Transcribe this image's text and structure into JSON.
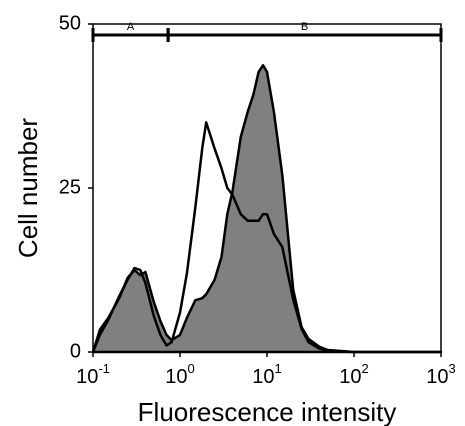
{
  "chart_data": {
    "type": "histogram-overlay",
    "xlabel": "Fluorescence intensity",
    "ylabel": "Cell number",
    "xscale": "log",
    "xlim": [
      0.1,
      1000
    ],
    "ylim": [
      0,
      50
    ],
    "xticks": [
      {
        "value": 0.1,
        "label": "10",
        "exponent": "-1"
      },
      {
        "value": 1,
        "label": "10",
        "exponent": "0"
      },
      {
        "value": 10,
        "label": "10",
        "exponent": "1"
      },
      {
        "value": 100,
        "label": "10",
        "exponent": "2"
      },
      {
        "value": 1000,
        "label": "10",
        "exponent": "3"
      }
    ],
    "yticks": [
      0,
      25,
      50
    ],
    "gates": [
      {
        "label": "A",
        "range": [
          0.1,
          0.73
        ]
      },
      {
        "label": "B",
        "range": [
          0.73,
          1000
        ]
      }
    ],
    "x": [
      0.1,
      0.12,
      0.15,
      0.2,
      0.25,
      0.3,
      0.35,
      0.4,
      0.5,
      0.6,
      0.7,
      0.8,
      1,
      1.2,
      1.5,
      1.8,
      2,
      2.5,
      3,
      3.5,
      4,
      5,
      6,
      7,
      8,
      9,
      10,
      12,
      15,
      20,
      25,
      30,
      40,
      50,
      100,
      1000
    ],
    "series": [
      {
        "color": "#808080",
        "filled": true,
        "values": [
          0,
          3.4,
          5.2,
          8.2,
          11.3,
          12.5,
          11.7,
          12.2,
          7.6,
          4.6,
          2.6,
          1.8,
          2.6,
          5.2,
          7.9,
          8.2,
          8.8,
          11,
          14.5,
          21,
          24.4,
          32.8,
          36.6,
          39.3,
          42.7,
          43.7,
          42.7,
          36.6,
          27,
          9.5,
          3.8,
          2,
          0.8,
          0.3,
          0,
          0
        ]
      },
      {
        "color": "#000000",
        "filled": false,
        "values": [
          0,
          2.6,
          4.9,
          8.5,
          11,
          12.8,
          12.5,
          10.5,
          5.5,
          2.5,
          1,
          1.5,
          6,
          12,
          22,
          31,
          35,
          31,
          28,
          25,
          24,
          21,
          20,
          20,
          20,
          21,
          21,
          18,
          16,
          8,
          3.5,
          1.5,
          0.5,
          0.2,
          0,
          0
        ]
      }
    ]
  }
}
